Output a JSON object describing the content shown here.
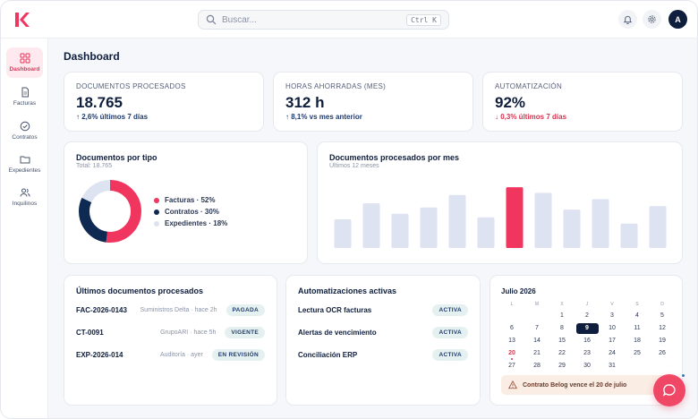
{
  "topbar": {
    "search_placeholder": "Buscar...",
    "search_shortcut": "Ctrl K",
    "avatar_initial": "A"
  },
  "sidebar": {
    "items": [
      {
        "label": "Dashboard",
        "icon": "grid-icon",
        "active": true
      },
      {
        "label": "Facturas",
        "icon": "file-icon"
      },
      {
        "label": "Contratos",
        "icon": "check-circle-icon"
      },
      {
        "label": "Expedientes",
        "icon": "folder-icon"
      },
      {
        "label": "Inquilinos",
        "icon": "users-icon"
      }
    ]
  },
  "page": {
    "title": "Dashboard"
  },
  "kpis": [
    {
      "label": "DOCUMENTOS PROCESADOS",
      "value": "18.765",
      "delta": "↑ 2,6% últimos 7 días",
      "trend": "up"
    },
    {
      "label": "HORAS AHORRADAS (MES)",
      "value": "312 h",
      "delta": "↑ 8,1% vs mes anterior",
      "trend": "up"
    },
    {
      "label": "AUTOMATIZACIÓN",
      "value": "92%",
      "delta": "↓ 0,3% últimos 7 días",
      "trend": "down"
    }
  ],
  "donut": {
    "title": "Documentos por tipo",
    "subtitle": "Total: 18.765",
    "legend": [
      {
        "label": "Facturas · 52%"
      },
      {
        "label": "Contratos · 30%"
      },
      {
        "label": "Expedientes · 18%"
      }
    ]
  },
  "chart_data": {
    "type": "bar",
    "title": "Documentos procesados por mes",
    "subtitle": "Últimos 12 meses",
    "values": [
      41,
      64,
      49,
      58,
      76,
      44,
      87,
      79,
      55,
      70,
      35,
      60
    ],
    "highlight_index": 6,
    "ylim": [
      0,
      100
    ],
    "colors": {
      "bar": "#dde3f0",
      "highlight": "#f0365f"
    },
    "grid": false
  },
  "donut_data": {
    "type": "pie",
    "values": [
      52,
      30,
      18
    ],
    "colors": [
      "#f0365f",
      "#0f2a52",
      "#dde3f0"
    ]
  },
  "recent_docs": {
    "title": "Últimos documentos procesados",
    "rows": [
      {
        "id": "FAC-2026-0143",
        "meta": "Suministros Delta · hace 2h",
        "status": "PAGADA"
      },
      {
        "id": "CT-0091",
        "meta": "GrupoARI · hace 5h",
        "status": "VIGENTE"
      },
      {
        "id": "EXP-2026-014",
        "meta": "Auditoría · ayer",
        "status": "EN REVISIÓN"
      }
    ]
  },
  "automations": {
    "title": "Automatizaciones activas",
    "rows": [
      {
        "name": "Lectura OCR facturas",
        "status": "ACTIVA"
      },
      {
        "name": "Alertas de vencimiento",
        "status": "ACTIVA"
      },
      {
        "name": "Conciliación ERP",
        "status": "ACTIVA"
      }
    ]
  },
  "calendar": {
    "title": "Julio 2026",
    "weekdays": [
      "L",
      "M",
      "X",
      "J",
      "V",
      "S",
      "D"
    ],
    "leading_blanks": 2,
    "days": 31,
    "today": 9,
    "event_day": 20,
    "alert": "Contrato Belog vence el 20 de julio"
  },
  "colors": {
    "accent": "#f0365f",
    "navy": "#0f1e3d",
    "badge_bg": "#e5f1f0"
  }
}
